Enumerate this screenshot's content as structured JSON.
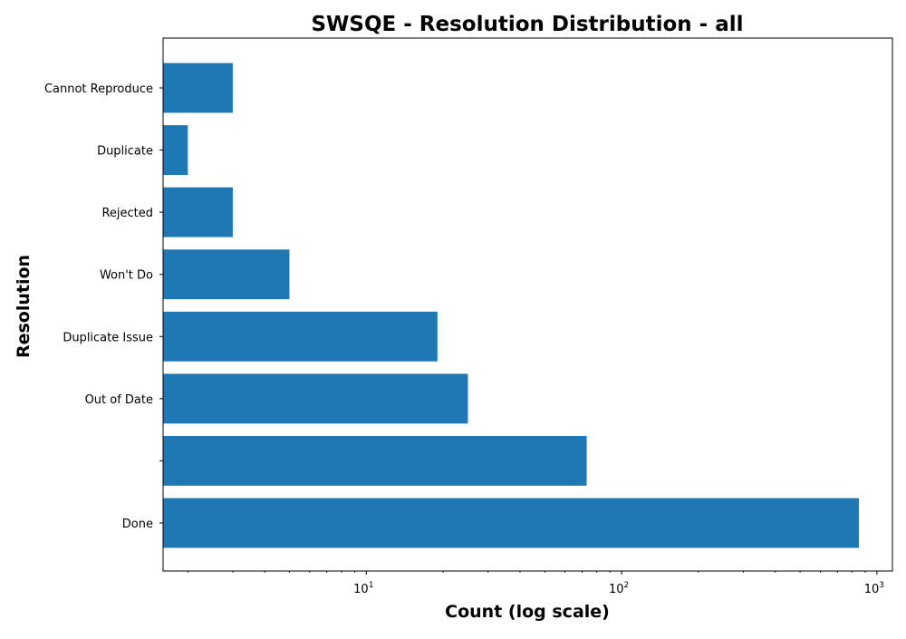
{
  "chart_data": {
    "type": "bar",
    "orientation": "horizontal",
    "title": "SWSQE - Resolution Distribution - all",
    "xlabel": "Count (log scale)",
    "ylabel": "Resolution",
    "x_scale": "log",
    "xlim": [
      1.6,
      1150
    ],
    "x_ticks": [
      {
        "base": "10",
        "exp": "1",
        "value": 10
      },
      {
        "base": "10",
        "exp": "2",
        "value": 100
      },
      {
        "base": "10",
        "exp": "3",
        "value": 1000
      }
    ],
    "categories": [
      "Done",
      "",
      "Out of Date",
      "Duplicate Issue",
      "Won't Do",
      "Rejected",
      "Duplicate",
      "Cannot Reproduce"
    ],
    "values": [
      850,
      73,
      25,
      19,
      5,
      3,
      2,
      3
    ],
    "bar_color": "#1f77b4",
    "grid": false
  }
}
